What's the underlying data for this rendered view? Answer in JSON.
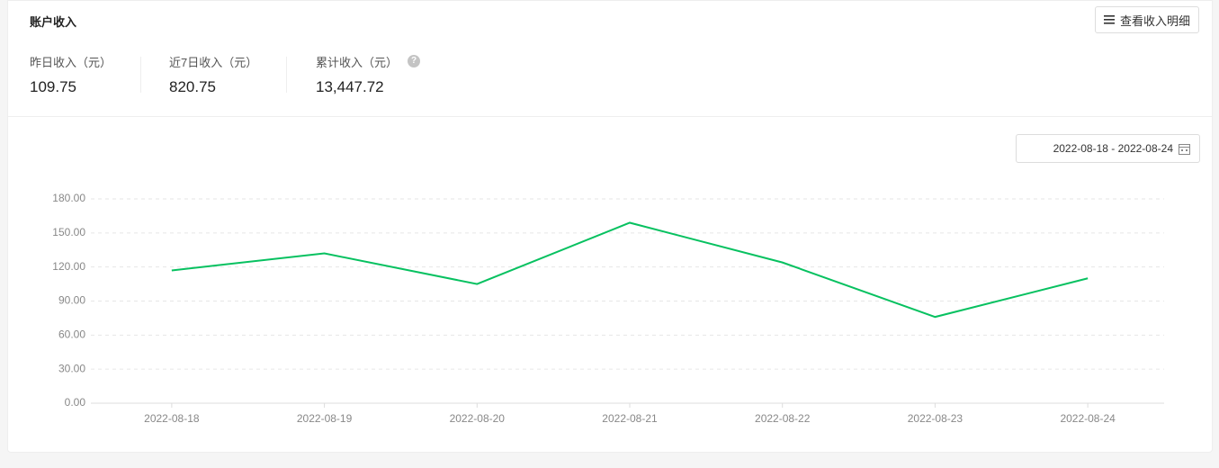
{
  "header": {
    "title": "账户收入",
    "detail_button": "查看收入明细"
  },
  "stats": [
    {
      "label": "昨日收入（元）",
      "value": "109.75"
    },
    {
      "label": "近7日收入（元）",
      "value": "820.75"
    },
    {
      "label": "累计收入（元）",
      "value": "13,447.72"
    }
  ],
  "date_range": "2022-08-18 - 2022-08-24",
  "chart_data": {
    "type": "line",
    "categories": [
      "2022-08-18",
      "2022-08-19",
      "2022-08-20",
      "2022-08-21",
      "2022-08-22",
      "2022-08-23",
      "2022-08-24"
    ],
    "values": [
      117,
      132,
      105,
      159,
      124,
      76,
      110
    ],
    "color": "#07c160",
    "ylim": [
      0,
      180
    ],
    "yticks": [
      {
        "value": 0,
        "label": "0.00"
      },
      {
        "value": 30,
        "label": "30.00"
      },
      {
        "value": 60,
        "label": "60.00"
      },
      {
        "value": 90,
        "label": "90.00"
      },
      {
        "value": 120,
        "label": "120.00"
      },
      {
        "value": 150,
        "label": "150.00"
      },
      {
        "value": 180,
        "label": "180.00"
      }
    ],
    "grid": true
  }
}
